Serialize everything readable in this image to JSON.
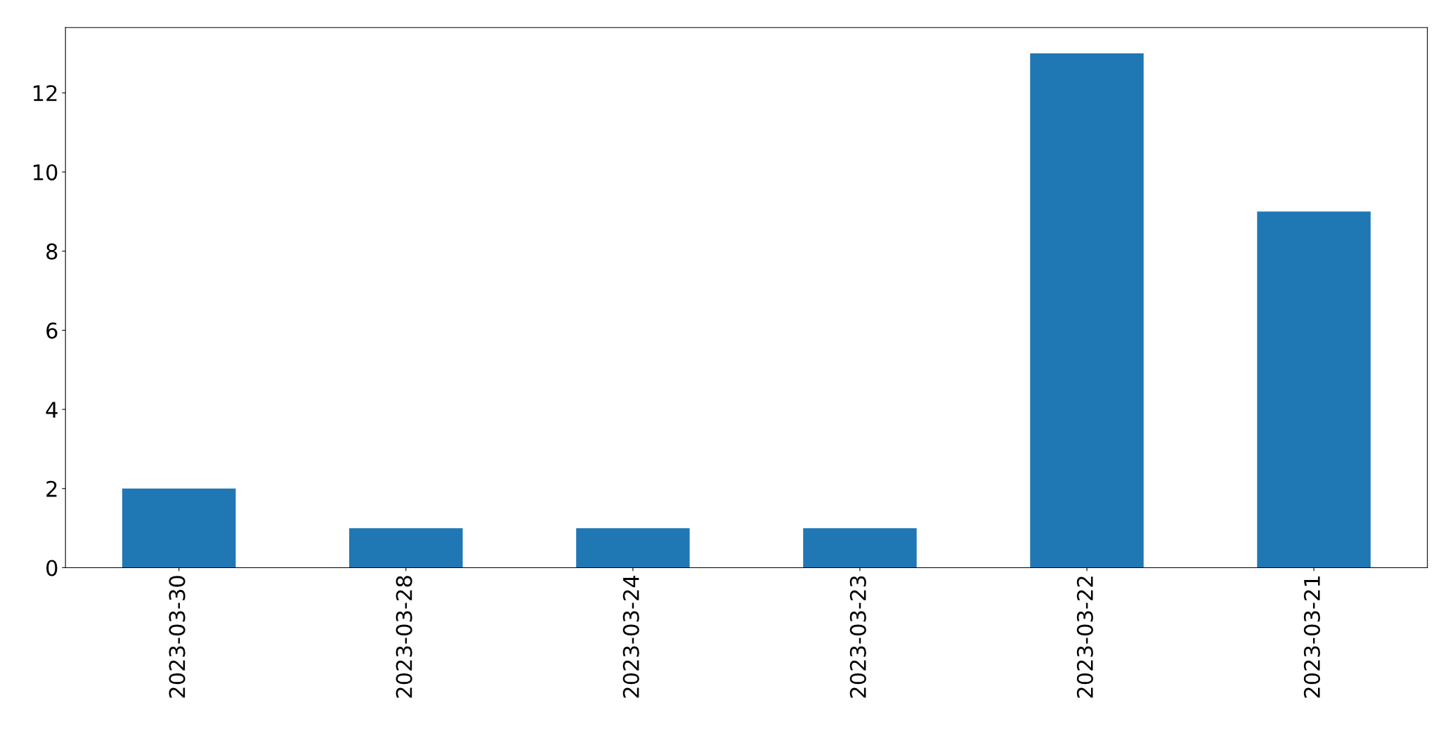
{
  "chart_data": {
    "type": "bar",
    "categories": [
      "2023-03-30",
      "2023-03-28",
      "2023-03-24",
      "2023-03-23",
      "2023-03-22",
      "2023-03-21"
    ],
    "values": [
      2,
      1,
      1,
      1,
      13,
      9
    ],
    "color": "#1f77b4",
    "ylim": [
      0,
      13.65
    ],
    "yticks": [
      0,
      2,
      4,
      6,
      8,
      10,
      12
    ],
    "grid": false,
    "legend": false
  }
}
